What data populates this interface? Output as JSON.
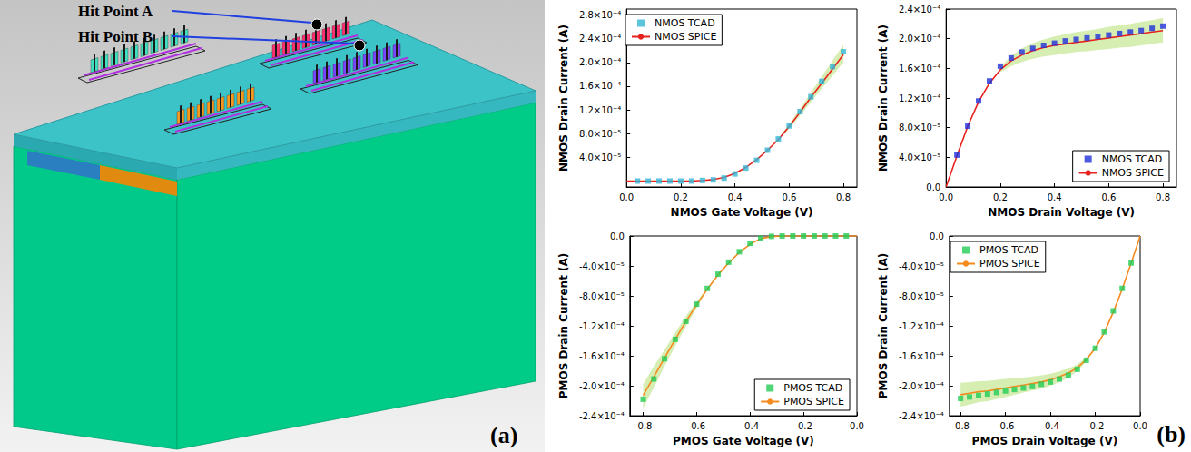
{
  "panel_a": {
    "label": "(a)",
    "hit_points": [
      {
        "label": "Hit Point A"
      },
      {
        "label": "Hit Point B"
      }
    ]
  },
  "panel_b": {
    "label": "(b)"
  },
  "chart_data": [
    {
      "type": "line",
      "x_label": "NMOS Gate Voltage (V)",
      "y_label": "NMOS Drain Current (A)",
      "x": [
        0,
        0.04,
        0.08,
        0.12,
        0.16,
        0.2,
        0.24,
        0.28,
        0.32,
        0.36,
        0.4,
        0.44,
        0.48,
        0.52,
        0.56,
        0.6,
        0.64,
        0.68,
        0.72,
        0.76,
        0.8
      ],
      "series": [
        {
          "name": "NMOS TCAD",
          "type": "scatter",
          "marker": "square",
          "color": "#33b5d5",
          "values": [
            null,
            0,
            0,
            0,
            0,
            0,
            0,
            1e-06,
            2e-06,
            5e-06,
            1.2e-05,
            2.2e-05,
            3.5e-05,
            5.2e-05,
            7.1e-05,
            9.3e-05,
            0.000117,
            0.000142,
            0.000168,
            0.000193,
            0.000218
          ]
        },
        {
          "name": "NMOS SPICE",
          "type": "line",
          "line_style": "solid",
          "color": "#e8231e",
          "values": [
            0,
            0,
            0,
            0,
            0,
            0,
            0,
            1e-06,
            2.5e-06,
            6e-06,
            1.3e-05,
            2.3e-05,
            3.6e-05,
            5.2e-05,
            7e-05,
            9.2e-05,
            0.000116,
            0.000141,
            0.000165,
            0.000189,
            0.000213
          ]
        }
      ],
      "band": {
        "color": "#c9e89a",
        "lower": [
          null,
          null,
          null,
          null,
          null,
          null,
          null,
          null,
          null,
          null,
          null,
          null,
          null,
          null,
          6.9e-05,
          8.8e-05,
          0.00011,
          0.000133,
          0.000156,
          0.000178,
          0.0002
        ],
        "upper": [
          null,
          null,
          null,
          null,
          null,
          null,
          null,
          null,
          null,
          null,
          null,
          null,
          null,
          null,
          7.1e-05,
          9.6e-05,
          0.000122,
          0.000149,
          0.000176,
          0.000203,
          0.00023
        ]
      },
      "xlim": [
        0,
        0.85
      ],
      "xticks": [
        {
          "value": 0,
          "label": "0.0"
        },
        0.2,
        0.4,
        0.6,
        0.8
      ],
      "ylim": [
        -1e-05,
        0.00029
      ],
      "yticks": [
        {
          "value": 4e-05,
          "label": "4.0×10⁻⁵"
        },
        {
          "value": 8e-05,
          "label": "8.0×10⁻⁵"
        },
        {
          "value": 0.00012,
          "label": "1.2×10⁻⁴"
        },
        {
          "value": 0.00016,
          "label": "1.6×10⁻⁴"
        },
        {
          "value": 0.0002,
          "label": "2.0×10⁻⁴"
        },
        {
          "value": 0.00024,
          "label": "2.4×10⁻⁴"
        },
        {
          "value": 0.00028,
          "label": "2.8×10⁻⁴"
        }
      ],
      "grid": false,
      "legend": "top-left"
    },
    {
      "type": "line",
      "x_label": "NMOS Drain Voltage (V)",
      "y_label": "NMOS Drain Current (A)",
      "x": [
        0,
        0.04,
        0.08,
        0.12,
        0.16,
        0.2,
        0.24,
        0.28,
        0.32,
        0.36,
        0.4,
        0.44,
        0.48,
        0.52,
        0.56,
        0.6,
        0.64,
        0.68,
        0.72,
        0.76,
        0.8
      ],
      "series": [
        {
          "name": "NMOS TCAD",
          "type": "scatter",
          "marker": "square",
          "color": "#1f2fd9",
          "values": [
            null,
            4.3e-05,
            8.2e-05,
            0.000116,
            0.000143,
            0.000163,
            0.000174,
            0.000182,
            0.000187,
            0.000191,
            0.000194,
            0.000197,
            0.000199,
            0.000201,
            0.000203,
            0.000205,
            0.000207,
            0.000209,
            0.000211,
            0.000214,
            0.000217
          ]
        },
        {
          "name": "NMOS SPICE",
          "type": "line",
          "line_style": "solid",
          "color": "#e8231e",
          "values": [
            0,
            4.2e-05,
            8.2e-05,
            0.000115,
            0.00014,
            0.000158,
            0.00017,
            0.000178,
            0.000184,
            0.000188,
            0.000191,
            0.000193,
            0.000195,
            0.000197,
            0.000199,
            0.000201,
            0.000203,
            0.000205,
            0.000207,
            0.000209,
            0.000211
          ]
        }
      ],
      "band": {
        "color": "#c9e89a",
        "lower": [
          null,
          null,
          null,
          null,
          null,
          0.000155,
          0.000163,
          0.000169,
          0.000173,
          0.000176,
          0.000178,
          0.00018,
          0.000182,
          0.000183,
          0.000185,
          0.000186,
          0.000188,
          0.000189,
          0.000191,
          0.000193,
          0.000195
        ],
        "upper": [
          null,
          null,
          null,
          null,
          null,
          0.000162,
          0.000177,
          0.000187,
          0.000194,
          0.000199,
          0.000203,
          0.000206,
          0.000209,
          0.000211,
          0.000213,
          0.000216,
          0.000218,
          0.00022,
          0.000223,
          0.000225,
          0.000228
        ]
      },
      "xlim": [
        0,
        0.85
      ],
      "xticks": [
        {
          "value": 0,
          "label": "0.0"
        },
        0.2,
        0.4,
        0.6,
        0.8
      ],
      "ylim": [
        0,
        0.00024
      ],
      "yticks": [
        {
          "value": 0,
          "label": "0.0"
        },
        {
          "value": 4e-05,
          "label": "4.0×10⁻⁵"
        },
        {
          "value": 8e-05,
          "label": "8.0×10⁻⁵"
        },
        {
          "value": 0.00012,
          "label": "1.2×10⁻⁴"
        },
        {
          "value": 0.00016,
          "label": "1.6×10⁻⁴"
        },
        {
          "value": 0.0002,
          "label": "2.0×10⁻⁴"
        },
        {
          "value": 0.00024,
          "label": "2.4×10⁻⁴"
        }
      ],
      "grid": false,
      "legend": "bottom-right"
    },
    {
      "type": "line",
      "x_label": "PMOS Gate Voltage (V)",
      "y_label": "PMOS Drain Current (A)",
      "x": [
        -0.8,
        -0.76,
        -0.72,
        -0.68,
        -0.64,
        -0.6,
        -0.56,
        -0.52,
        -0.48,
        -0.44,
        -0.4,
        -0.36,
        -0.32,
        -0.28,
        -0.24,
        -0.2,
        -0.16,
        -0.12,
        -0.08,
        -0.04,
        0
      ],
      "series": [
        {
          "name": "PMOS TCAD",
          "type": "scatter",
          "marker": "square",
          "color": "#22cc55",
          "values": [
            -0.000218,
            -0.000191,
            -0.000164,
            -0.000138,
            -0.000114,
            -9.1e-05,
            -7e-05,
            -5.1e-05,
            -3.5e-05,
            -2.1e-05,
            -1e-05,
            -3e-06,
            -5e-07,
            0,
            0,
            0,
            0,
            0,
            0,
            0,
            null
          ]
        },
        {
          "name": "PMOS SPICE",
          "type": "line",
          "line_style": "solid",
          "color": "#f58a1f",
          "values": [
            -0.000213,
            -0.000188,
            -0.000163,
            -0.000138,
            -0.000114,
            -9.2e-05,
            -7.1e-05,
            -5.2e-05,
            -3.6e-05,
            -2.2e-05,
            -1.1e-05,
            -3.5e-06,
            -8e-07,
            0,
            0,
            0,
            0,
            0,
            0,
            0,
            0
          ]
        }
      ],
      "band": {
        "color": "#c9e89a",
        "lower": [
          -0.00023,
          -0.000202,
          -0.000174,
          -0.000147,
          -0.000121,
          -9.6e-05,
          -7.1e-05,
          null,
          null,
          null,
          null,
          null,
          null,
          null,
          null,
          null,
          null,
          null,
          null,
          null,
          null
        ],
        "upper": [
          -0.000198,
          -0.000174,
          -0.000152,
          -0.000129,
          -0.000107,
          -8.8e-05,
          -6.9e-05,
          null,
          null,
          null,
          null,
          null,
          null,
          null,
          null,
          null,
          null,
          null,
          null,
          null,
          null
        ]
      },
      "xlim": [
        -0.85,
        0
      ],
      "xticks": [
        -0.8,
        -0.6,
        -0.4,
        -0.2,
        {
          "value": 0,
          "label": "0.0"
        }
      ],
      "ylim": [
        -0.00024,
        0
      ],
      "yticks": [
        {
          "value": -0.00024,
          "label": "-2.4×10⁻⁴"
        },
        {
          "value": -0.0002,
          "label": "-2.0×10⁻⁴"
        },
        {
          "value": -0.00016,
          "label": "-1.6×10⁻⁴"
        },
        {
          "value": -0.00012,
          "label": "-1.2×10⁻⁴"
        },
        {
          "value": -8e-05,
          "label": "-8.0×10⁻⁵"
        },
        {
          "value": -4e-05,
          "label": "-4.0×10⁻⁵"
        },
        {
          "value": 0,
          "label": "0.0"
        }
      ],
      "grid": false,
      "legend": "bottom-right"
    },
    {
      "type": "line",
      "x_label": "PMOS Drain Voltage (V)",
      "y_label": "PMOS Drain Current (A)",
      "x": [
        -0.8,
        -0.76,
        -0.72,
        -0.68,
        -0.64,
        -0.6,
        -0.56,
        -0.52,
        -0.48,
        -0.44,
        -0.4,
        -0.36,
        -0.32,
        -0.28,
        -0.24,
        -0.2,
        -0.16,
        -0.12,
        -0.08,
        -0.04,
        0
      ],
      "series": [
        {
          "name": "PMOS TCAD",
          "type": "scatter",
          "marker": "square",
          "color": "#22cc55",
          "values": [
            -0.000217,
            -0.000215,
            -0.000213,
            -0.000211,
            -0.000209,
            -0.000207,
            -0.000205,
            -0.000203,
            -0.000201,
            -0.000198,
            -0.000195,
            -0.000191,
            -0.000186,
            -0.000178,
            -0.000166,
            -0.00015,
            -0.000128,
            -0.0001,
            -7e-05,
            -3.6e-05,
            null
          ]
        },
        {
          "name": "PMOS SPICE",
          "type": "line",
          "line_style": "solid",
          "color": "#f58a1f",
          "values": [
            -0.000212,
            -0.00021,
            -0.000208,
            -0.000207,
            -0.000205,
            -0.000203,
            -0.000201,
            -0.000199,
            -0.000197,
            -0.000195,
            -0.000192,
            -0.000188,
            -0.000183,
            -0.000176,
            -0.000165,
            -0.00015,
            -0.000129,
            -0.000102,
            -7.1e-05,
            -3.6e-05,
            0
          ]
        }
      ],
      "band": {
        "color": "#c9e89a",
        "lower": [
          -0.000228,
          -0.000225,
          -0.000222,
          -0.0002205,
          -0.000218,
          -0.000215,
          -0.000212,
          -0.000209,
          -0.0002065,
          -0.000204,
          -0.0002,
          -0.000195,
          -0.000189,
          -0.0001805,
          -0.000168,
          -0.000151,
          null,
          null,
          null,
          null,
          null
        ],
        "upper": [
          -0.000196,
          -0.000195,
          -0.000194,
          -0.0001935,
          -0.000192,
          -0.000191,
          -0.00019,
          -0.000189,
          -0.0001875,
          -0.000186,
          -0.000184,
          -0.000181,
          -0.000177,
          -0.0001715,
          -0.000162,
          -0.000149,
          null,
          null,
          null,
          null,
          null
        ]
      },
      "xlim": [
        -0.85,
        0
      ],
      "xticks": [
        -0.8,
        -0.6,
        -0.4,
        -0.2,
        {
          "value": 0,
          "label": "0.0"
        }
      ],
      "ylim": [
        -0.00024,
        0
      ],
      "yticks": [
        {
          "value": -0.00024,
          "label": "-2.4×10⁻⁴"
        },
        {
          "value": -0.0002,
          "label": "-2.0×10⁻⁴"
        },
        {
          "value": -0.00016,
          "label": "-1.6×10⁻⁴"
        },
        {
          "value": -0.00012,
          "label": "-1.2×10⁻⁴"
        },
        {
          "value": -8e-05,
          "label": "-8.0×10⁻⁵"
        },
        {
          "value": -4e-05,
          "label": "-4.0×10⁻⁵"
        },
        {
          "value": 0,
          "label": "0.0"
        }
      ],
      "grid": false,
      "legend": "top-left"
    }
  ]
}
